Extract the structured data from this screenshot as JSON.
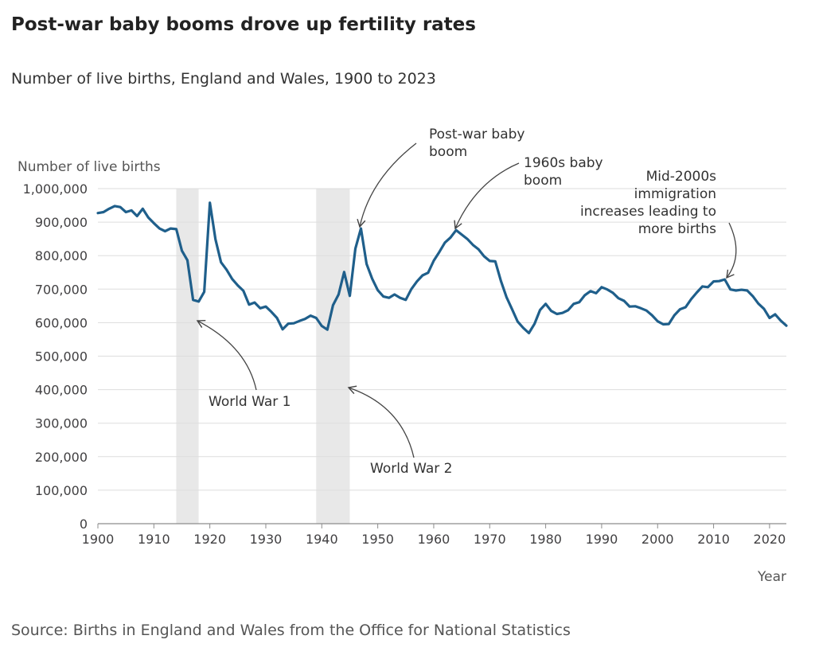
{
  "title": "Post-war baby booms drove up fertility rates",
  "subtitle": "Number of live births, England and Wales, 1900 to 2023",
  "source": "Source: Births in England and Wales from the Office for National Statistics",
  "colors": {
    "line": "#1f5f8b",
    "shade": "#e8e8e8",
    "grid": "#dddddd",
    "axis": "#8c8c8c"
  },
  "chart_data": {
    "type": "line",
    "title": "Post-war baby booms drove up fertility rates",
    "subtitle": "Number of live births, England and Wales, 1900 to 2023",
    "xlabel": "Year",
    "ylabel": "Number of live births",
    "xlim": [
      1900,
      2023
    ],
    "ylim": [
      0,
      1000000
    ],
    "grid": true,
    "x_ticks": [
      1900,
      1910,
      1920,
      1930,
      1940,
      1950,
      1960,
      1970,
      1980,
      1990,
      2000,
      2010,
      2020
    ],
    "y_ticks": [
      0,
      100000,
      200000,
      300000,
      400000,
      500000,
      600000,
      700000,
      800000,
      900000,
      1000000
    ],
    "y_tick_labels": [
      "0",
      "100,000",
      "200,000",
      "300,000",
      "400,000",
      "500,000",
      "600,000",
      "700,000",
      "800,000",
      "900,000",
      "1,000,000"
    ],
    "shaded_periods": [
      {
        "label": "World War 1",
        "start": 1914,
        "end": 1918
      },
      {
        "label": "World War 2",
        "start": 1939,
        "end": 1945
      }
    ],
    "annotations": [
      {
        "lines": [
          "Post-war baby",
          "boom"
        ],
        "x": 1947,
        "y": 881000
      },
      {
        "lines": [
          "1960s baby",
          "boom"
        ],
        "x": 1964,
        "y": 876000
      },
      {
        "lines": [
          "Mid-2000s",
          "immigration",
          "increases leading to",
          "more births"
        ],
        "x": 2012,
        "y": 730000
      },
      {
        "lines": [
          "World War 1"
        ],
        "x": 1918,
        "y": 605000
      },
      {
        "lines": [
          "World War 2"
        ],
        "x": 1945,
        "y": 405000
      }
    ],
    "series": [
      {
        "x": [
          1900,
          1901,
          1902,
          1903,
          1904,
          1905,
          1906,
          1907,
          1908,
          1909,
          1910,
          1911,
          1912,
          1913,
          1914,
          1915,
          1916,
          1917,
          1918,
          1919,
          1920,
          1921,
          1922,
          1923,
          1924,
          1925,
          1926,
          1927,
          1928,
          1929,
          1930,
          1931,
          1932,
          1933,
          1934,
          1935,
          1936,
          1937,
          1938,
          1939,
          1940,
          1941,
          1942,
          1943,
          1944,
          1945,
          1946,
          1947,
          1948,
          1949,
          1950,
          1951,
          1952,
          1953,
          1954,
          1955,
          1956,
          1957,
          1958,
          1959,
          1960,
          1961,
          1962,
          1963,
          1964,
          1965,
          1966,
          1967,
          1968,
          1969,
          1970,
          1971,
          1972,
          1973,
          1974,
          1975,
          1976,
          1977,
          1978,
          1979,
          1980,
          1981,
          1982,
          1983,
          1984,
          1985,
          1986,
          1987,
          1988,
          1989,
          1990,
          1991,
          1992,
          1993,
          1994,
          1995,
          1996,
          1997,
          1998,
          1999,
          2000,
          2001,
          2002,
          2003,
          2004,
          2005,
          2006,
          2007,
          2008,
          2009,
          2010,
          2011,
          2012,
          2013,
          2014,
          2015,
          2016,
          2017,
          2018,
          2019,
          2020,
          2021,
          2022,
          2023
        ],
        "values": [
          927000,
          930000,
          940000,
          948000,
          945000,
          930000,
          935000,
          918000,
          940000,
          914000,
          897000,
          881000,
          873000,
          881000,
          879000,
          815000,
          786000,
          668000,
          663000,
          692000,
          958000,
          849000,
          780000,
          758000,
          730000,
          711000,
          695000,
          654000,
          660000,
          643000,
          648000,
          632000,
          614000,
          580000,
          597000,
          598000,
          605000,
          611000,
          621000,
          614000,
          590000,
          579000,
          652000,
          684000,
          751000,
          680000,
          821000,
          881000,
          775000,
          731000,
          697000,
          678000,
          674000,
          684000,
          674000,
          668000,
          700000,
          723000,
          741000,
          749000,
          785000,
          811000,
          839000,
          854000,
          876000,
          863000,
          850000,
          832000,
          819000,
          798000,
          784000,
          783000,
          725000,
          676000,
          640000,
          603000,
          584000,
          569000,
          596000,
          638000,
          656000,
          635000,
          626000,
          629000,
          637000,
          656000,
          661000,
          682000,
          694000,
          688000,
          706000,
          699000,
          689000,
          673000,
          665000,
          648000,
          649000,
          643000,
          636000,
          622000,
          604000,
          595000,
          596000,
          622000,
          640000,
          646000,
          670000,
          690000,
          708000,
          706000,
          723000,
          724000,
          729000,
          699000,
          696000,
          698000,
          696000,
          679000,
          657000,
          641000,
          614000,
          625000,
          606000,
          591000
        ]
      }
    ]
  }
}
